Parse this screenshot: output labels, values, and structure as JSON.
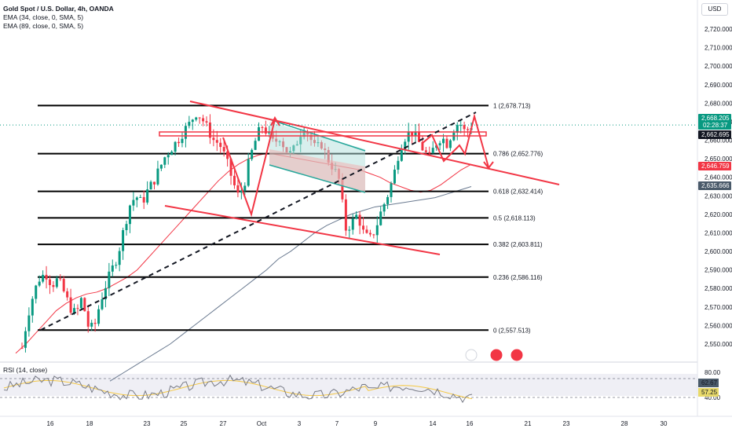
{
  "header": {
    "symbol": "Gold Spot / U.S. Dollar, 4h, OANDA",
    "ema1": "EMA (34, close, 0, SMA, 5)",
    "ema2": "EMA (89, close, 0, SMA, 5)",
    "currency": "USD"
  },
  "rsi": {
    "label": "RSI (14, close)",
    "ticks": [
      "80.00",
      "40.00"
    ],
    "badges": [
      "62.67",
      "57.25"
    ]
  },
  "price_badges": [
    {
      "text": "2,668.205",
      "sub": "02:28:37",
      "color": "#089981"
    },
    {
      "text": "2,662.695",
      "color": "#131722"
    },
    {
      "text": "2,646.759",
      "color": "#f23645"
    },
    {
      "text": "2,635.666",
      "color": "#4a5a6a"
    }
  ],
  "chart_data": {
    "type": "candlestick",
    "title": "Gold Spot / U.S. Dollar, 4h, OANDA",
    "ylim": [
      2545,
      2730
    ],
    "y_ticks": [
      "2,720.000",
      "2,710.000",
      "2,700.000",
      "2,690.000",
      "2,680.000",
      "2,670.000",
      "2,660.000",
      "2,650.000",
      "2,640.000",
      "2,630.000",
      "2,620.000",
      "2,610.000",
      "2,600.000",
      "2,590.000",
      "2,580.000",
      "2,570.000",
      "2,560.000",
      "2,550.000"
    ],
    "y_tick_values": [
      2720,
      2710,
      2700,
      2690,
      2680,
      2670,
      2660,
      2650,
      2640,
      2630,
      2620,
      2610,
      2600,
      2590,
      2580,
      2570,
      2560,
      2550
    ],
    "x_ticks": [
      "16",
      "18",
      "23",
      "25",
      "27",
      "Oct",
      "3",
      "7",
      "9",
      "14",
      "16",
      "21",
      "23",
      "28",
      "30"
    ],
    "fib_levels": [
      {
        "label": "1 (2,678.713)",
        "value": 2678.713
      },
      {
        "label": "0.786 (2,652.776)",
        "value": 2652.776
      },
      {
        "label": "0.618 (2,632.414)",
        "value": 2632.414
      },
      {
        "label": "0.5 (2,618.113)",
        "value": 2618.113
      },
      {
        "label": "0.382 (2,603.811)",
        "value": 2603.811
      },
      {
        "label": "0.236 (2,586.116)",
        "value": 2586.116
      },
      {
        "label": "0 (2,557.513)",
        "value": 2557.513
      }
    ],
    "close_path": [
      2548,
      2566,
      2578,
      2586,
      2588,
      2582,
      2585,
      2578,
      2570,
      2566,
      2575,
      2560,
      2558,
      2572,
      2582,
      2590,
      2598,
      2612,
      2625,
      2630,
      2626,
      2633,
      2638,
      2645,
      2652,
      2656,
      2660,
      2665,
      2669,
      2675,
      2672,
      2666,
      2660,
      2658,
      2650,
      2640,
      2630,
      2635,
      2650,
      2660,
      2668,
      2664,
      2658,
      2662,
      2655,
      2652,
      2660,
      2668,
      2662,
      2655,
      2658,
      2650,
      2645,
      2638,
      2612,
      2615,
      2620,
      2610,
      2606,
      2612,
      2622,
      2630,
      2640,
      2655,
      2662,
      2665,
      2660,
      2655,
      2650,
      2658,
      2662,
      2658,
      2666,
      2670,
      2664,
      2668
    ],
    "ema34": [
      2545,
      2550,
      2556,
      2562,
      2568,
      2572,
      2575,
      2577,
      2578,
      2580,
      2583,
      2586,
      2590,
      2596,
      2602,
      2608,
      2614,
      2620,
      2626,
      2632,
      2638,
      2643,
      2647,
      2650,
      2652,
      2653,
      2652,
      2651,
      2650,
      2649,
      2648,
      2647,
      2646,
      2645,
      2644,
      2642,
      2640,
      2637,
      2635,
      2633,
      2632,
      2633,
      2636,
      2640,
      2644,
      2647
    ],
    "ema89": [
      2530,
      2534,
      2538,
      2542,
      2546,
      2550,
      2555,
      2560,
      2565,
      2570,
      2575,
      2580,
      2585,
      2590,
      2596,
      2600,
      2605,
      2610,
      2614,
      2617,
      2620,
      2622,
      2624,
      2625,
      2626,
      2627,
      2628,
      2629,
      2631,
      2633,
      2635
    ]
  },
  "rsi_data": {
    "ylim": [
      30,
      85
    ],
    "upper": 70,
    "lower": 30
  }
}
